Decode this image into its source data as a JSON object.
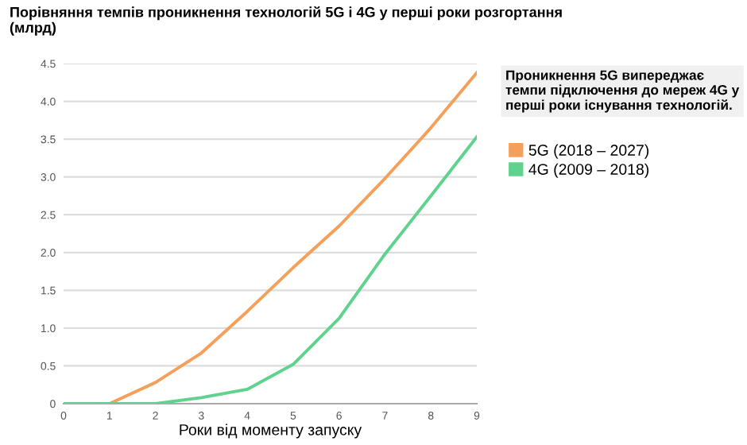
{
  "chart_data": {
    "type": "line",
    "title": "Порівняння темпів проникнення технологій 5G і 4G у перші роки розгортання\n(млрд)",
    "xlabel": "Роки від моменту запуску",
    "x": [
      0,
      1,
      2,
      3,
      4,
      5,
      6,
      7,
      8,
      9
    ],
    "series": [
      {
        "name": "5G (2018 – 2027)",
        "color": "#f5a05a",
        "values": [
          0,
          0,
          0.28,
          0.67,
          1.22,
          1.8,
          2.35,
          2.98,
          3.65,
          4.38
        ]
      },
      {
        "name": "4G (2009 – 2018)",
        "color": "#5fd38d",
        "values": [
          0,
          0,
          0,
          0.08,
          0.19,
          0.52,
          1.13,
          1.98,
          2.75,
          3.53
        ]
      }
    ],
    "annotations": [
      "Проникнення 5G випереджає темпи підключення до мереж 4G у перші роки існування технологій."
    ],
    "xlim": [
      0,
      9
    ],
    "xticks": [
      0,
      1,
      2,
      3,
      4,
      5,
      6,
      7,
      8,
      9
    ],
    "ylim": [
      0,
      4.5
    ],
    "yticks": [
      0,
      0.5,
      {
        "value": 1,
        "label": "1.0"
      },
      1.5,
      {
        "value": 2,
        "label": "2.0"
      },
      2.5,
      {
        "value": 3,
        "label": "3.0"
      },
      3.5,
      {
        "value": 4,
        "label": "4.0"
      },
      4.5
    ],
    "grid": "y",
    "legend": "right",
    "marker": "none",
    "line_style": "solid"
  }
}
